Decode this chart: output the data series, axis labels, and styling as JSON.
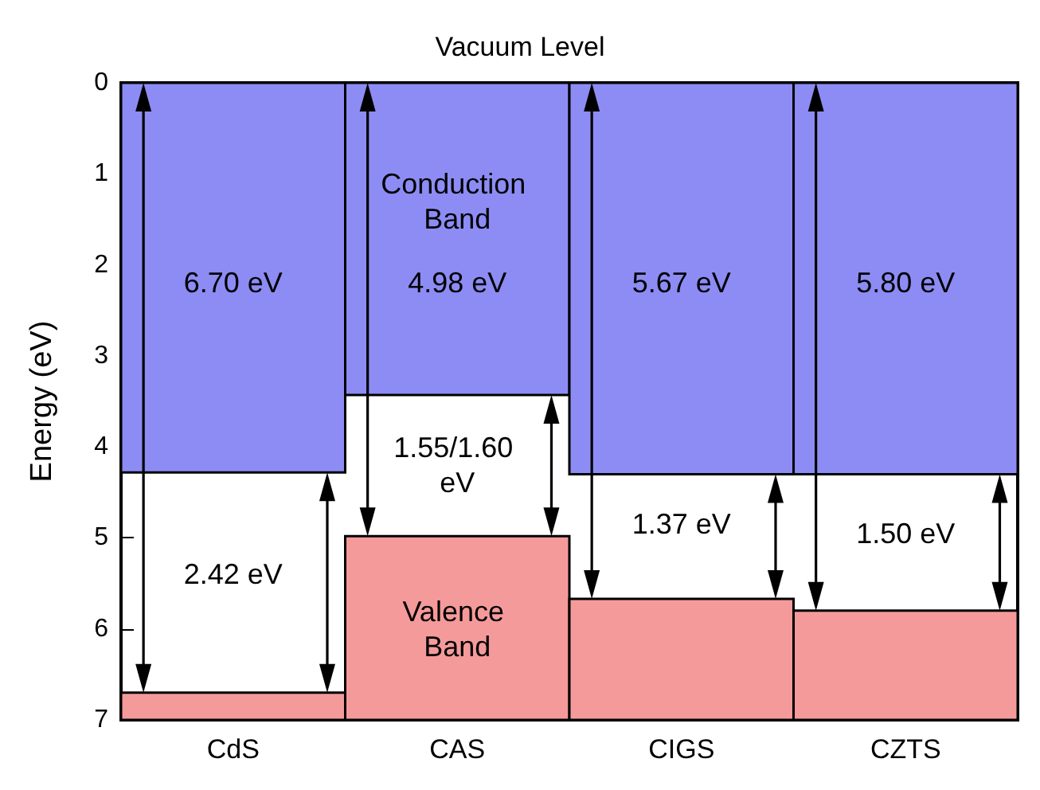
{
  "chart_data": {
    "type": "bar",
    "title": "Vacuum Level",
    "ylabel": "Energy (eV)",
    "categories": [
      "CdS",
      "CAS",
      "CIGS",
      "CZTS"
    ],
    "series": [
      {
        "color": "#8c8cf4",
        "base": [
          0,
          0,
          0,
          0
        ],
        "values": [
          4.28,
          3.43,
          4.3,
          4.3
        ]
      },
      {
        "color": "#f59a9a",
        "base": [
          6.7,
          4.98,
          5.67,
          5.8
        ],
        "values": [
          0.3,
          2.02,
          1.33,
          1.2
        ]
      }
    ],
    "ylim": [
      7,
      0
    ],
    "yticks": [
      0,
      1,
      2,
      3,
      4,
      5,
      6,
      7
    ],
    "grid": false,
    "annotations": [
      "Conduction Band",
      "Valence Band",
      "6.70 eV",
      "2.42 eV",
      "4.98 eV",
      "1.55/1.60 eV",
      "5.67 eV",
      "1.37 eV",
      "5.80 eV",
      "1.50 eV"
    ]
  }
}
